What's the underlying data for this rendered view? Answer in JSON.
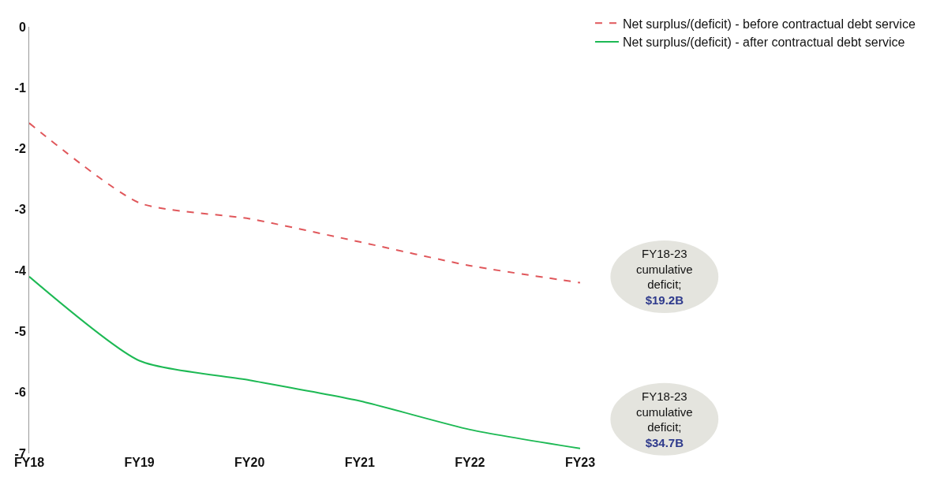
{
  "chart_data": {
    "type": "line",
    "categories": [
      "FY18",
      "FY19",
      "FY20",
      "FY21",
      "FY22",
      "FY23"
    ],
    "series": [
      {
        "name": "Net surplus/(deficit) - before contractual debt service",
        "color": "#e0575b",
        "line_style": "dashed",
        "values": [
          -1.58,
          -2.89,
          -3.15,
          -3.53,
          -3.92,
          -4.2
        ]
      },
      {
        "name": "Net surplus/(deficit) - after contractual debt service",
        "color": "#1db954",
        "line_style": "solid",
        "values": [
          -4.1,
          -5.48,
          -5.8,
          -6.14,
          -6.61,
          -6.92
        ]
      }
    ],
    "ylim": [
      -7,
      0
    ],
    "yticks": [
      0,
      -1,
      -2,
      -3,
      -4,
      -5,
      -6,
      -7
    ],
    "grid": false,
    "legend": "top right",
    "marker": "none",
    "annotations": [
      "FY18-23 cumulative deficit; $19.2B",
      "FY18-23 cumulative deficit; $34.7B"
    ]
  }
}
